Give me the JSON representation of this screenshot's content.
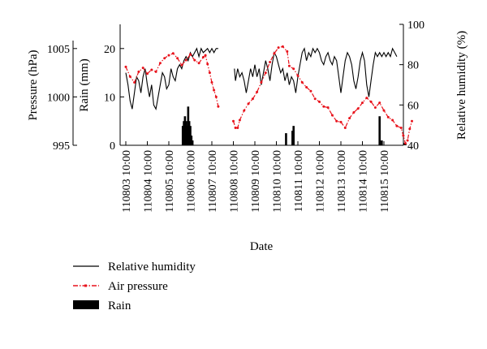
{
  "chart_data": {
    "type": "line",
    "xlabel": "Date",
    "x_ticks": [
      "110803 10:00",
      "110804 10:00",
      "110805 10:00",
      "110806 10:00",
      "110807 10:00",
      "110808 10:00",
      "110809 10:00",
      "110810 10:00",
      "110811 10:00",
      "110812 10:00",
      "110813 10:00",
      "110814 10:00",
      "110815 10:00"
    ],
    "axes": {
      "pressure": {
        "label": "Pressure (hPa)",
        "lim": [
          995,
          1007.5
        ],
        "ticks": [
          "995",
          "1000",
          "1005"
        ]
      },
      "rain": {
        "label": "Rain (mm)",
        "lim": [
          0,
          25
        ],
        "ticks": [
          "0",
          "10",
          "20"
        ]
      },
      "humidity": {
        "label": "Relative humidity (%)",
        "lim": [
          40,
          100
        ],
        "ticks": [
          "40",
          "60",
          "80",
          "100"
        ]
      }
    },
    "series": [
      {
        "name": "Relative humidity",
        "axis": "humidity",
        "color": "#000000",
        "style": "solid",
        "segments": [
          [
            [
              0,
              76
            ],
            [
              0.1,
              70
            ],
            [
              0.2,
              62
            ],
            [
              0.3,
              58
            ],
            [
              0.4,
              66
            ],
            [
              0.5,
              74
            ],
            [
              0.6,
              72
            ],
            [
              0.7,
              66
            ],
            [
              0.8,
              74
            ],
            [
              0.9,
              78
            ],
            [
              1.0,
              70
            ],
            [
              1.1,
              64
            ],
            [
              1.2,
              70
            ],
            [
              1.3,
              60
            ],
            [
              1.4,
              58
            ],
            [
              1.5,
              64
            ],
            [
              1.6,
              70
            ],
            [
              1.7,
              76
            ],
            [
              1.8,
              74
            ],
            [
              1.9,
              68
            ],
            [
              2.0,
              70
            ],
            [
              2.1,
              78
            ],
            [
              2.2,
              74
            ],
            [
              2.3,
              72
            ],
            [
              2.4,
              78
            ],
            [
              2.5,
              80
            ],
            [
              2.6,
              78
            ],
            [
              2.7,
              82
            ],
            [
              2.8,
              84
            ],
            [
              2.9,
              82
            ],
            [
              3.0,
              86
            ],
            [
              3.1,
              84
            ],
            [
              3.2,
              86
            ],
            [
              3.3,
              88
            ],
            [
              3.4,
              84
            ],
            [
              3.5,
              88
            ],
            [
              3.6,
              86
            ],
            [
              3.7,
              87
            ],
            [
              3.8,
              88
            ],
            [
              3.9,
              86
            ],
            [
              4.0,
              88
            ],
            [
              4.1,
              86
            ],
            [
              4.2,
              88
            ],
            [
              4.3,
              88
            ]
          ],
          [
            [
              5.05,
              78
            ],
            [
              5.1,
              72
            ],
            [
              5.2,
              78
            ],
            [
              5.3,
              74
            ],
            [
              5.4,
              76
            ],
            [
              5.5,
              72
            ],
            [
              5.6,
              66
            ],
            [
              5.7,
              72
            ],
            [
              5.8,
              78
            ],
            [
              5.9,
              74
            ],
            [
              6.0,
              80
            ],
            [
              6.1,
              74
            ],
            [
              6.2,
              78
            ],
            [
              6.3,
              70
            ],
            [
              6.4,
              76
            ],
            [
              6.5,
              82
            ],
            [
              6.6,
              78
            ],
            [
              6.7,
              72
            ],
            [
              6.8,
              80
            ],
            [
              6.9,
              86
            ],
            [
              7.0,
              84
            ],
            [
              7.1,
              80
            ],
            [
              7.2,
              76
            ],
            [
              7.3,
              78
            ],
            [
              7.4,
              72
            ],
            [
              7.5,
              76
            ],
            [
              7.6,
              70
            ],
            [
              7.7,
              74
            ],
            [
              7.8,
              72
            ],
            [
              7.9,
              66
            ],
            [
              8.0,
              74
            ],
            [
              8.1,
              80
            ],
            [
              8.2,
              86
            ],
            [
              8.3,
              88
            ],
            [
              8.4,
              82
            ],
            [
              8.5,
              86
            ],
            [
              8.6,
              84
            ],
            [
              8.7,
              88
            ],
            [
              8.8,
              86
            ],
            [
              8.9,
              88
            ],
            [
              9.0,
              86
            ],
            [
              9.1,
              82
            ],
            [
              9.2,
              80
            ],
            [
              9.3,
              84
            ],
            [
              9.4,
              86
            ],
            [
              9.5,
              82
            ],
            [
              9.6,
              80
            ],
            [
              9.7,
              84
            ],
            [
              9.8,
              82
            ],
            [
              9.9,
              74
            ],
            [
              10.0,
              66
            ],
            [
              10.1,
              74
            ],
            [
              10.2,
              82
            ],
            [
              10.3,
              86
            ],
            [
              10.4,
              84
            ],
            [
              10.5,
              80
            ],
            [
              10.6,
              72
            ],
            [
              10.7,
              68
            ],
            [
              10.8,
              74
            ],
            [
              10.9,
              82
            ],
            [
              11.0,
              86
            ],
            [
              11.1,
              82
            ],
            [
              11.2,
              70
            ],
            [
              11.3,
              64
            ],
            [
              11.4,
              72
            ],
            [
              11.5,
              80
            ],
            [
              11.6,
              86
            ],
            [
              11.7,
              84
            ],
            [
              11.8,
              86
            ],
            [
              11.9,
              84
            ],
            [
              12.0,
              86
            ],
            [
              12.1,
              84
            ],
            [
              12.2,
              86
            ],
            [
              12.3,
              84
            ],
            [
              12.4,
              88
            ],
            [
              12.5,
              86
            ],
            [
              12.6,
              84
            ]
          ]
        ]
      },
      {
        "name": "Air pressure",
        "axis": "pressure",
        "color": "#e8121b",
        "style": "dash-dot",
        "segments": [
          [
            [
              0,
              1003.1
            ],
            [
              0.2,
              1002.1
            ],
            [
              0.4,
              1001.5
            ],
            [
              0.6,
              1002.6
            ],
            [
              0.8,
              1003.0
            ],
            [
              1.0,
              1002.4
            ],
            [
              1.2,
              1002.8
            ],
            [
              1.4,
              1002.6
            ],
            [
              1.6,
              1003.5
            ],
            [
              1.8,
              1004.0
            ],
            [
              2.0,
              1004.3
            ],
            [
              2.2,
              1004.5
            ],
            [
              2.4,
              1004.0
            ],
            [
              2.6,
              1003.3
            ],
            [
              2.8,
              1003.8
            ],
            [
              3.0,
              1004.4
            ],
            [
              3.2,
              1003.8
            ],
            [
              3.4,
              1003.5
            ],
            [
              3.6,
              1004.1
            ],
            [
              3.7,
              1004.3
            ],
            [
              3.8,
              1003.4
            ],
            [
              3.9,
              1002.5
            ],
            [
              4.0,
              1001.5
            ],
            [
              4.1,
              1000.7
            ],
            [
              4.2,
              1000.0
            ],
            [
              4.3,
              999.0
            ]
          ],
          [
            [
              5.0,
              997.5
            ],
            [
              5.1,
              996.8
            ],
            [
              5.2,
              996.8
            ],
            [
              5.3,
              997.6
            ],
            [
              5.5,
              998.6
            ],
            [
              5.7,
              999.3
            ],
            [
              5.9,
              999.8
            ],
            [
              6.1,
              1000.5
            ],
            [
              6.3,
              1001.5
            ],
            [
              6.5,
              1002.5
            ],
            [
              6.7,
              1003.6
            ],
            [
              6.9,
              1004.5
            ],
            [
              7.1,
              1005.1
            ],
            [
              7.3,
              1005.2
            ],
            [
              7.5,
              1004.7
            ],
            [
              7.6,
              1003.2
            ],
            [
              7.8,
              1002.9
            ],
            [
              8.0,
              1002.2
            ],
            [
              8.2,
              1001.5
            ],
            [
              8.4,
              1001.0
            ],
            [
              8.6,
              1000.6
            ],
            [
              8.8,
              999.8
            ],
            [
              9.0,
              999.5
            ],
            [
              9.2,
              999.0
            ],
            [
              9.4,
              998.9
            ],
            [
              9.6,
              998.1
            ],
            [
              9.8,
              997.5
            ],
            [
              10.0,
              997.4
            ],
            [
              10.2,
              996.8
            ],
            [
              10.4,
              997.8
            ],
            [
              10.6,
              998.4
            ],
            [
              10.8,
              998.8
            ],
            [
              11.0,
              999.4
            ],
            [
              11.2,
              999.9
            ],
            [
              11.4,
              999.5
            ],
            [
              11.6,
              998.9
            ],
            [
              11.8,
              999.4
            ],
            [
              12.0,
              998.6
            ],
            [
              12.2,
              997.9
            ],
            [
              12.4,
              997.6
            ],
            [
              12.6,
              997.0
            ],
            [
              12.8,
              996.8
            ],
            [
              12.9,
              996.0
            ],
            [
              13.0,
              995.2
            ],
            [
              13.1,
              995.5
            ],
            [
              13.2,
              996.7
            ],
            [
              13.3,
              997.5
            ]
          ]
        ]
      },
      {
        "name": "Rain",
        "axis": "rain",
        "color": "#000000",
        "style": "bar",
        "points": [
          [
            2.65,
            4
          ],
          [
            2.7,
            5
          ],
          [
            2.75,
            6
          ],
          [
            2.8,
            5
          ],
          [
            2.85,
            4
          ],
          [
            2.9,
            8
          ],
          [
            2.95,
            5
          ],
          [
            3.0,
            4
          ],
          [
            3.05,
            2
          ],
          [
            3.1,
            1
          ],
          [
            7.45,
            2.5
          ],
          [
            7.75,
            3
          ],
          [
            7.8,
            4
          ],
          [
            11.8,
            6
          ],
          [
            11.9,
            1
          ],
          [
            12.95,
            0.5
          ],
          [
            13.0,
            0.5
          ]
        ]
      }
    ],
    "legend": {
      "placement": "bottom-left",
      "entries": [
        "Relative humidity",
        "Air pressure",
        "Rain"
      ]
    }
  }
}
